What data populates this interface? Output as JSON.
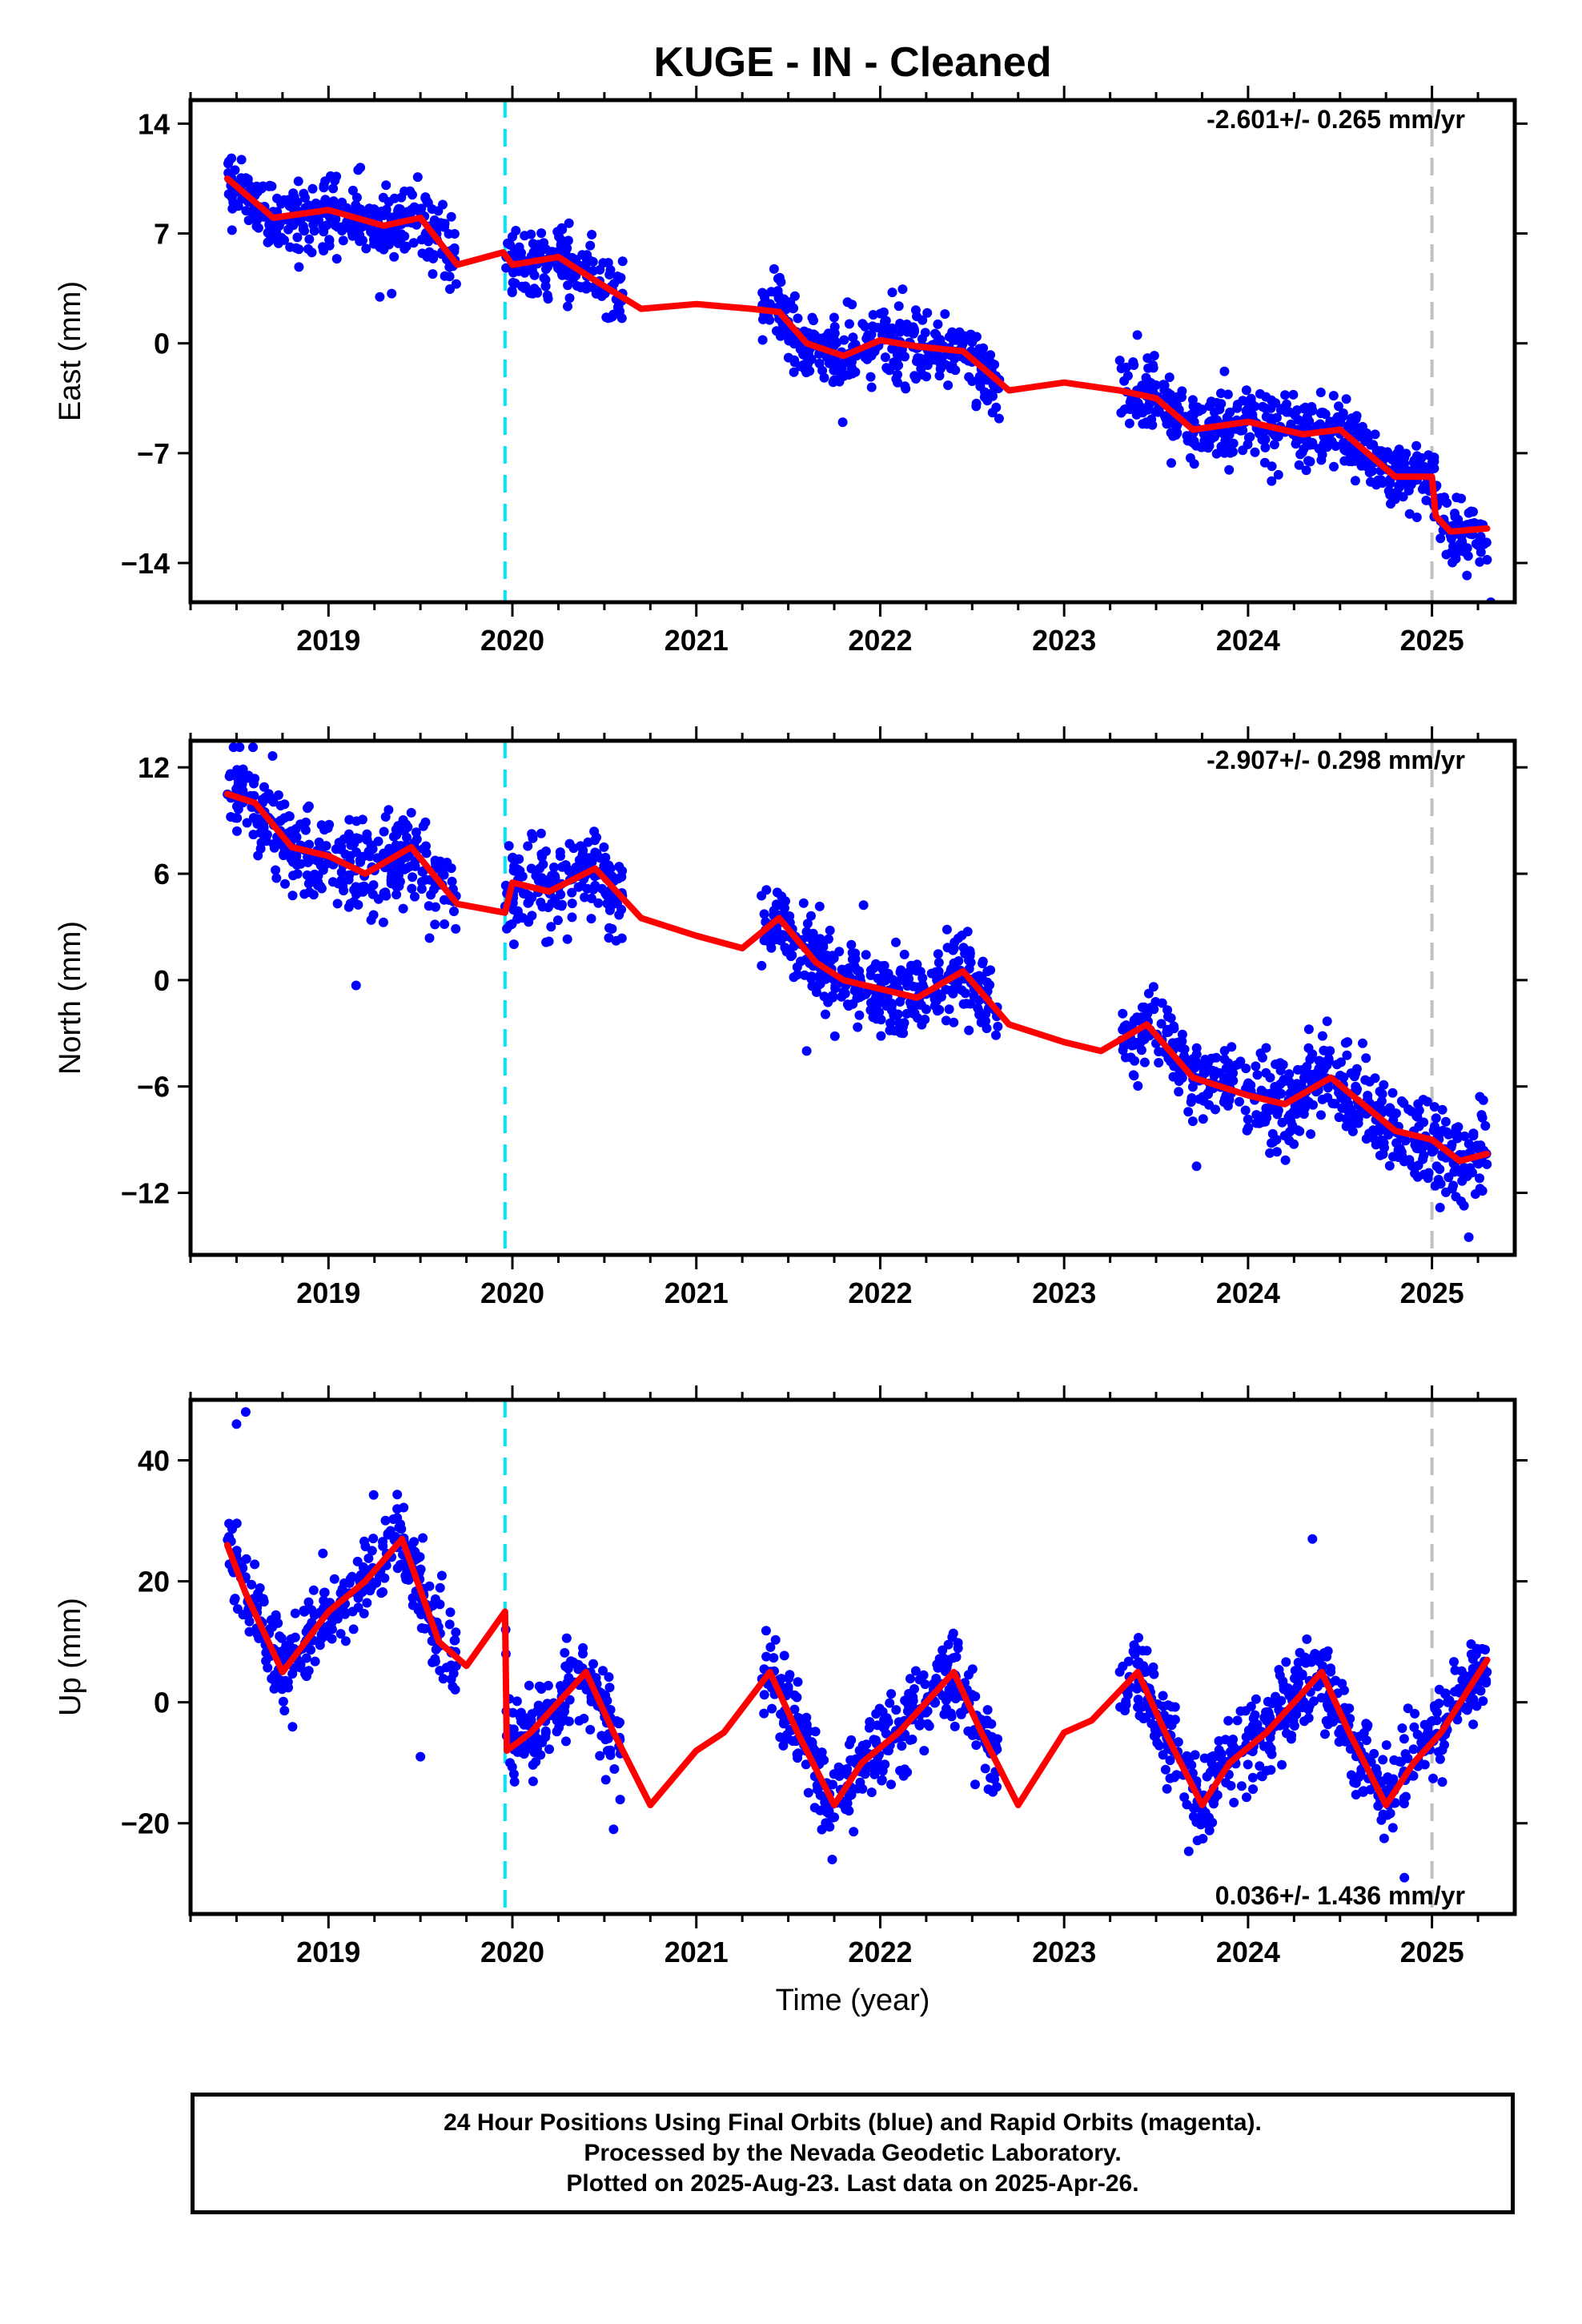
{
  "title": "KUGE  - IN - Cleaned",
  "colors": {
    "data_points": "#0000ff",
    "model": "#ff0000",
    "antenna_change": "#00e5ff",
    "equipment_change": "#c0c0c0",
    "frame": "#000000"
  },
  "x_axis": {
    "label": "Time (year)",
    "range": [
      2018.25,
      2025.45
    ],
    "ticks": [
      2019,
      2020,
      2021,
      2022,
      2023,
      2024,
      2025
    ],
    "tick_labels": [
      "2019",
      "2020",
      "2021",
      "2022",
      "2023",
      "2024",
      "2025"
    ],
    "minor_step": 0.25
  },
  "event_lines": [
    {
      "year": 2019.96,
      "style": "cyan-dashed"
    },
    {
      "year": 2025.0,
      "style": "gray-dashed"
    }
  ],
  "chart_data": [
    {
      "type": "scatter",
      "panel": "east",
      "ylabel": "East (mm)",
      "ylim": [
        -16.5,
        15.5
      ],
      "yticks": [
        14,
        7,
        0,
        -7,
        -14
      ],
      "ytick_labels": [
        "14",
        "7",
        "0",
        "−7",
        "−14"
      ],
      "rate": "-2.601+/- 0.265 mm/yr",
      "rate_position": "top-right",
      "segments": [
        [
          2018.45,
          2019.7
        ],
        [
          2019.96,
          2020.6
        ],
        [
          2021.35,
          2022.65
        ],
        [
          2023.3,
          2025.3
        ]
      ],
      "model": {
        "x": [
          2018.45,
          2018.7,
          2019.0,
          2019.3,
          2019.5,
          2019.7,
          2019.95,
          2020.0,
          2020.25,
          2020.45,
          2020.7,
          2021.0,
          2021.3,
          2021.45,
          2021.6,
          2021.8,
          2022.0,
          2022.2,
          2022.45,
          2022.7,
          2023.0,
          2023.3,
          2023.5,
          2023.7,
          2024.0,
          2024.3,
          2024.5,
          2024.8,
          2025.0,
          2025.02,
          2025.1,
          2025.3
        ],
        "y": [
          10.5,
          8.0,
          8.5,
          7.5,
          8.0,
          5.0,
          5.8,
          5.0,
          5.5,
          4.0,
          2.2,
          2.5,
          2.2,
          2.0,
          0.0,
          -0.8,
          0.2,
          -0.2,
          -0.5,
          -3.0,
          -2.5,
          -3.0,
          -3.5,
          -5.5,
          -5.0,
          -5.8,
          -5.5,
          -8.5,
          -8.5,
          -11.0,
          -12.0,
          -11.8
        ]
      },
      "scatter": {
        "noise_sd": 1.1,
        "density": 280,
        "outliers": [
          [
            2025.32,
            -16.5
          ]
        ]
      }
    },
    {
      "type": "scatter",
      "panel": "north",
      "ylabel": "North (mm)",
      "ylim": [
        -15.5,
        13.5
      ],
      "yticks": [
        12,
        6,
        0,
        -6,
        -12
      ],
      "ytick_labels": [
        "12",
        "6",
        "0",
        "−6",
        "−12"
      ],
      "rate": "-2.907+/- 0.298 mm/yr",
      "rate_position": "top-right",
      "segments": [
        [
          2018.45,
          2019.7
        ],
        [
          2019.96,
          2020.6
        ],
        [
          2021.35,
          2022.65
        ],
        [
          2023.3,
          2025.3
        ]
      ],
      "model": {
        "x": [
          2018.45,
          2018.6,
          2018.8,
          2019.0,
          2019.2,
          2019.45,
          2019.7,
          2019.96,
          2020.0,
          2020.2,
          2020.45,
          2020.7,
          2021.0,
          2021.25,
          2021.45,
          2021.65,
          2021.8,
          2022.0,
          2022.2,
          2022.45,
          2022.7,
          2023.0,
          2023.2,
          2023.45,
          2023.7,
          2024.0,
          2024.2,
          2024.45,
          2024.8,
          2025.0,
          2025.15,
          2025.3
        ],
        "y": [
          10.5,
          10.0,
          7.5,
          7.0,
          6.0,
          7.5,
          4.3,
          3.8,
          5.5,
          5.0,
          6.3,
          3.5,
          2.5,
          1.8,
          3.5,
          1.0,
          0.0,
          -0.5,
          -1.0,
          0.5,
          -2.5,
          -3.5,
          -4.0,
          -2.5,
          -5.5,
          -6.5,
          -7.0,
          -5.5,
          -8.5,
          -9.0,
          -10.2,
          -9.8
        ]
      },
      "scatter": {
        "noise_sd": 1.2,
        "density": 280,
        "outliers": [
          [
            2019.15,
            -0.3
          ],
          [
            2021.6,
            -4.0
          ],
          [
            2023.72,
            -10.5
          ],
          [
            2025.2,
            -14.5
          ]
        ]
      }
    },
    {
      "type": "scatter",
      "panel": "up",
      "ylabel": "Up (mm)",
      "ylim": [
        -35,
        50
      ],
      "yticks": [
        40,
        20,
        0,
        -20
      ],
      "ytick_labels": [
        "40",
        "20",
        "0",
        "−20"
      ],
      "rate": "0.036+/- 1.436 mm/yr",
      "rate_position": "bottom-right",
      "segments": [
        [
          2018.45,
          2019.7
        ],
        [
          2019.96,
          2020.6
        ],
        [
          2021.35,
          2022.65
        ],
        [
          2023.3,
          2025.3
        ]
      ],
      "model": {
        "x": [
          2018.45,
          2018.55,
          2018.75,
          2019.0,
          2019.2,
          2019.4,
          2019.6,
          2019.75,
          2019.96,
          2019.97,
          2020.1,
          2020.4,
          2020.55,
          2020.75,
          2021.0,
          2021.15,
          2021.4,
          2021.55,
          2021.75,
          2021.9,
          2022.1,
          2022.4,
          2022.55,
          2022.75,
          2023.0,
          2023.15,
          2023.4,
          2023.55,
          2023.75,
          2023.9,
          2024.1,
          2024.4,
          2024.55,
          2024.75,
          2024.9,
          2025.05,
          2025.3
        ],
        "y": [
          26,
          18,
          5,
          15,
          20,
          27,
          10,
          6,
          15,
          -8,
          -5,
          5,
          -5,
          -17,
          -8,
          -5,
          5,
          -5,
          -17,
          -10,
          -5,
          5,
          -5,
          -17,
          -5,
          -3,
          5,
          -5,
          -17,
          -10,
          -5,
          5,
          -5,
          -17,
          -10,
          -5,
          7
        ]
      },
      "scatter": {
        "noise_sd": 3.5,
        "density": 280,
        "outliers": [
          [
            2018.5,
            46
          ],
          [
            2018.55,
            48
          ],
          [
            2019.5,
            -9
          ],
          [
            2020.55,
            -21
          ],
          [
            2024.35,
            27
          ],
          [
            2024.85,
            -29
          ]
        ]
      }
    }
  ],
  "footer": {
    "lines": [
      "24 Hour Positions Using Final Orbits (blue) and Rapid Orbits (magenta).",
      "Processed by the Nevada Geodetic Laboratory.",
      "Plotted on 2025-Aug-23. Last data on 2025-Apr-26."
    ]
  }
}
